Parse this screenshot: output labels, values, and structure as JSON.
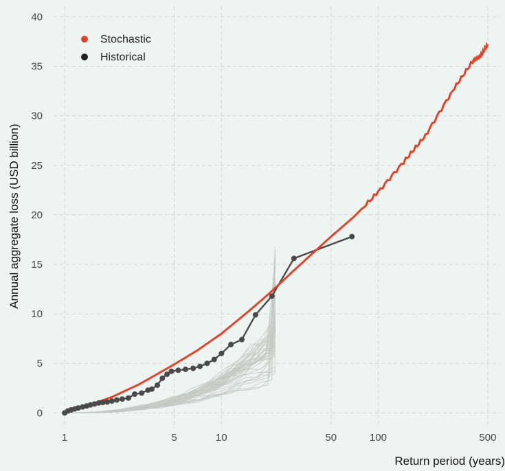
{
  "chart_data": {
    "type": "line",
    "xlabel": "Return period (years)",
    "ylabel": "Annual aggregate loss (USD billion)",
    "xscale": "log",
    "xlim": [
      0.85,
      600
    ],
    "ylim": [
      -1.5,
      41
    ],
    "x_ticks": [
      1,
      5,
      10,
      50,
      100,
      500
    ],
    "y_ticks": [
      0,
      5,
      10,
      15,
      20,
      25,
      30,
      35,
      40
    ],
    "grid": true,
    "legend_position": "top-left",
    "colors": {
      "stochastic": "#e0452b",
      "historical": "#4a4a4a",
      "simulations": "#c4c8c6",
      "background": "#eef4f1"
    },
    "series": [
      {
        "name": "Stochastic",
        "x": [
          1.0,
          1.2,
          1.5,
          2.0,
          3.0,
          5.0,
          7.0,
          10.0,
          15.0,
          20.0,
          30.0,
          50.0,
          70.0,
          100.0,
          150.0,
          200.0,
          300.0,
          400.0,
          450.0,
          500.0
        ],
        "values": [
          0.0,
          0.4,
          0.9,
          1.6,
          2.9,
          4.9,
          6.3,
          8.0,
          10.3,
          12.0,
          14.6,
          17.8,
          19.8,
          22.3,
          25.6,
          28.0,
          32.6,
          35.5,
          36.0,
          37.2
        ]
      },
      {
        "name": "Historical",
        "x": [
          1.0,
          1.05,
          1.1,
          1.16,
          1.22,
          1.3,
          1.38,
          1.46,
          1.55,
          1.65,
          1.75,
          1.87,
          2.0,
          2.15,
          2.33,
          2.55,
          2.8,
          3.1,
          3.4,
          3.6,
          3.9,
          4.2,
          4.5,
          4.8,
          5.3,
          5.9,
          6.6,
          7.3,
          8.1,
          9.0,
          10.0,
          11.5,
          13.5,
          16.5,
          21.0,
          29.0,
          68.0
        ],
        "values": [
          0.0,
          0.2,
          0.3,
          0.4,
          0.5,
          0.6,
          0.7,
          0.8,
          0.9,
          1.0,
          1.05,
          1.1,
          1.2,
          1.3,
          1.4,
          1.5,
          1.9,
          2.0,
          2.3,
          2.4,
          2.8,
          3.5,
          3.9,
          4.2,
          4.3,
          4.4,
          4.5,
          4.7,
          5.0,
          5.4,
          6.0,
          6.9,
          7.4,
          9.9,
          11.8,
          15.6,
          17.8
        ]
      }
    ],
    "simulation_count": 40,
    "simulation_x_max": 22
  }
}
